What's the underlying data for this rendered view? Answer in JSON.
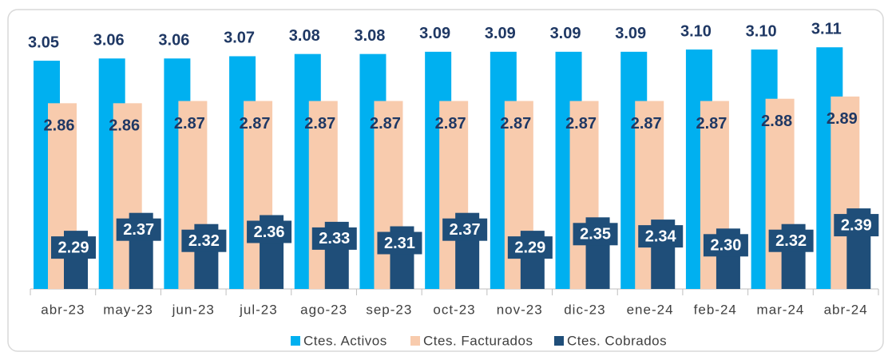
{
  "chart_data": {
    "type": "bar",
    "categories": [
      "abr-23",
      "may-23",
      "jun-23",
      "jul-23",
      "ago-23",
      "sep-23",
      "oct-23",
      "nov-23",
      "dic-23",
      "ene-24",
      "feb-24",
      "mar-24",
      "abr-24"
    ],
    "series": [
      {
        "name": "Ctes. Activos",
        "color": "#00b0f0",
        "values": [
          3.05,
          3.06,
          3.06,
          3.07,
          3.08,
          3.08,
          3.09,
          3.09,
          3.09,
          3.09,
          3.1,
          3.1,
          3.11
        ],
        "value_labels": [
          "3.05",
          "3.06",
          "3.06",
          "3.07",
          "3.08",
          "3.08",
          "3.09",
          "3.09",
          "3.09",
          "3.09",
          "3.10",
          "3.10",
          "3.11"
        ]
      },
      {
        "name": "Ctes. Facturados",
        "color": "#f8cbad",
        "values": [
          2.86,
          2.86,
          2.87,
          2.87,
          2.87,
          2.87,
          2.87,
          2.87,
          2.87,
          2.87,
          2.87,
          2.88,
          2.89
        ],
        "value_labels": [
          "2.86",
          "2.86",
          "2.87",
          "2.87",
          "2.87",
          "2.87",
          "2.87",
          "2.87",
          "2.87",
          "2.87",
          "2.87",
          "2.88",
          "2.89"
        ]
      },
      {
        "name": "Ctes. Cobrados",
        "color": "#1f4e79",
        "values": [
          2.29,
          2.37,
          2.32,
          2.36,
          2.33,
          2.31,
          2.37,
          2.29,
          2.35,
          2.34,
          2.3,
          2.32,
          2.39
        ],
        "value_labels": [
          "2.29",
          "2.37",
          "2.32",
          "2.36",
          "2.33",
          "2.31",
          "2.37",
          "2.29",
          "2.35",
          "2.34",
          "2.30",
          "2.32",
          "2.39"
        ]
      }
    ],
    "ylim": [
      2.03,
      3.25
    ]
  }
}
